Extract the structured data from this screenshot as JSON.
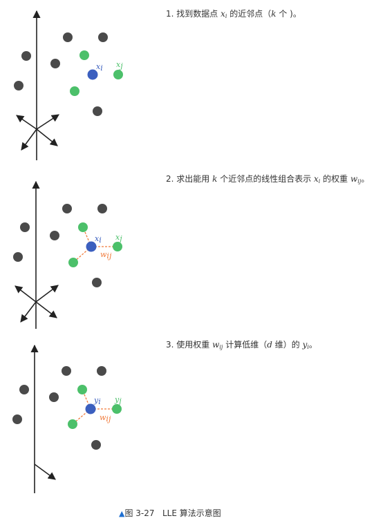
{
  "steps": [
    {
      "pre": "1. 找到数据点 ",
      "var1": "x",
      "var1_sub": "i",
      "mid1": " 的近邻点（",
      "var2": "k",
      "post": " 个 )。"
    },
    {
      "pre": "2. 求出能用 ",
      "var_k": "k",
      "mid1": " 个近邻点的线性组合表示 ",
      "var1": "x",
      "var1_sub": "i",
      "mid2": " 的权重 ",
      "var2": "w",
      "var2_sub": "ij",
      "post": "。"
    },
    {
      "pre": "3. 使用权重 ",
      "var1": "w",
      "var1_sub": "ij",
      "mid1": " 计算低维（",
      "var2": "d",
      "mid2": " 维）的 ",
      "var3": "y",
      "var3_sub": "i",
      "post": "。"
    }
  ],
  "labels": {
    "p1_center": "x",
    "p1_center_sub": "i",
    "p1_neighbor": "x",
    "p1_neighbor_sub": "j",
    "p2_center": "x",
    "p2_center_sub": "i",
    "p2_neighbor": "x",
    "p2_neighbor_sub": "j",
    "p2_weight": "w",
    "p2_weight_sub": "ij",
    "p3_center": "y",
    "p3_center_sub": "i",
    "p3_neighbor": "y",
    "p3_neighbor_sub": "j",
    "p3_weight": "w",
    "p3_weight_sub": "ij"
  },
  "caption": {
    "marker": "▲",
    "figure": "图 3-27",
    "title": "LLE 算法示意图"
  },
  "colors": {
    "gray_point": "#4a4a4a",
    "green_point": "#4cc06a",
    "blue_point": "#3b5fbf",
    "weight_line": "#f07a3a",
    "axis": "#222222"
  }
}
